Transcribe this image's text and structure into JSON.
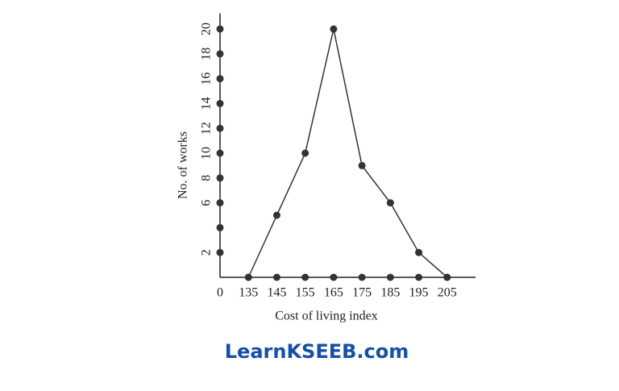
{
  "chart_data": {
    "type": "line",
    "x_label": "Cost of living index",
    "y_label": "No. of works",
    "watermark": "LearnKSEEB.com",
    "x": [
      135,
      145,
      155,
      165,
      175,
      185,
      195,
      205
    ],
    "series": [
      {
        "color": "#333333",
        "values": [
          0,
          5,
          10,
          20,
          9,
          6,
          2,
          0
        ]
      }
    ],
    "xlim": [
      125,
      215
    ],
    "ylim": [
      0,
      21
    ],
    "xticks": [
      0,
      135,
      145,
      155,
      165,
      175,
      185,
      195,
      205
    ],
    "x_axis_break": true,
    "yticks": [
      2,
      6,
      8,
      10,
      12,
      14,
      16,
      18,
      20
    ],
    "y_tick_dots": [
      2,
      4,
      6,
      8,
      10,
      12,
      14,
      16,
      18,
      20
    ]
  }
}
